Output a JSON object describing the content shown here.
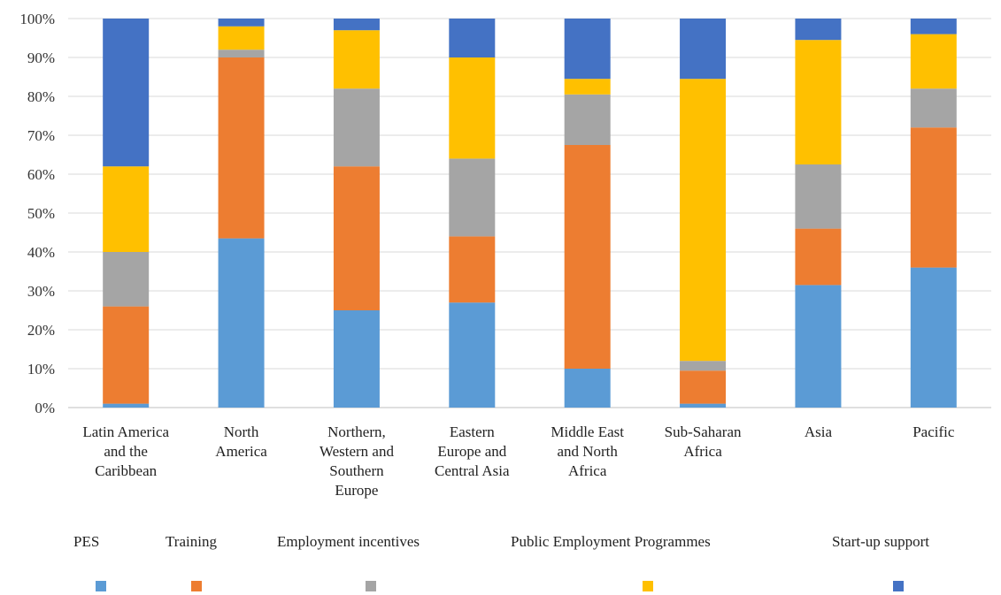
{
  "chart_data": {
    "type": "bar",
    "stacked": true,
    "percent": true,
    "categories": [
      [
        "Latin America",
        "and the",
        "Caribbean"
      ],
      [
        "North",
        "America"
      ],
      [
        "Northern,",
        "Western and",
        "Southern",
        "Europe"
      ],
      [
        "Eastern",
        "Europe and",
        "Central Asia"
      ],
      [
        "Middle East",
        "and North",
        "Africa"
      ],
      [
        "Sub-Saharan",
        "Africa"
      ],
      [
        "Asia"
      ],
      [
        "Pacific"
      ]
    ],
    "series": [
      {
        "name": "PES",
        "color": "#5B9BD5",
        "values": [
          1,
          43.5,
          25,
          27,
          10,
          1,
          31.5,
          36
        ]
      },
      {
        "name": "Training",
        "color": "#ED7D31",
        "values": [
          25,
          46.5,
          37,
          17,
          57.5,
          8.5,
          14.5,
          36
        ]
      },
      {
        "name": "Employment incentives",
        "color": "#A5A5A5",
        "values": [
          14,
          2,
          20,
          20,
          13,
          2.5,
          16.5,
          10
        ]
      },
      {
        "name": "Public Employment Programmes",
        "color": "#FFC000",
        "values": [
          22,
          6,
          15,
          26,
          4,
          72.5,
          32,
          14
        ]
      },
      {
        "name": "Start-up support",
        "color": "#4472C4",
        "values": [
          38,
          2,
          3,
          10,
          15.5,
          15.5,
          5.5,
          4
        ]
      }
    ],
    "y_ticks": [
      "0%",
      "10%",
      "20%",
      "30%",
      "40%",
      "50%",
      "60%",
      "70%",
      "80%",
      "90%",
      "100%"
    ],
    "ylim": [
      0,
      100
    ],
    "grid": true,
    "legend_position": "bottom"
  }
}
